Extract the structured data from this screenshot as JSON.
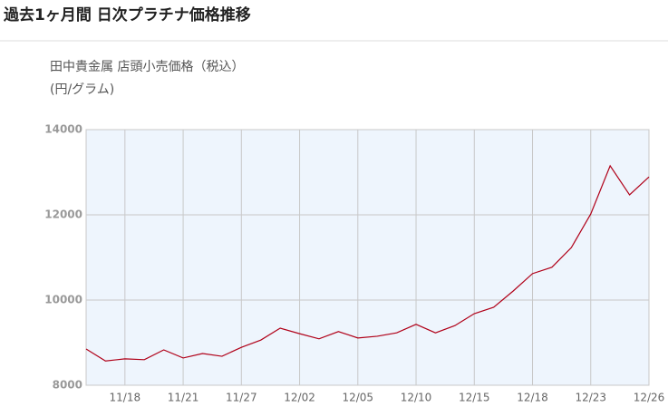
{
  "header": {
    "title": "過去1ヶ月間 日次プラチナ価格推移"
  },
  "chart_data": {
    "type": "line",
    "title": "田中貴金属 店頭小売価格（税込）",
    "subtitle": "(円/グラム)",
    "categories": [
      null,
      null,
      "11/18",
      null,
      null,
      "11/21",
      null,
      null,
      "11/27",
      null,
      null,
      "12/02",
      null,
      null,
      "12/05",
      null,
      null,
      "12/10",
      null,
      null,
      "12/15",
      null,
      null,
      "12/18",
      null,
      null,
      "12/23",
      null,
      null,
      "12/26"
    ],
    "series": [
      {
        "name": "プラチナ",
        "color": "#b00018",
        "values": [
          8850,
          8570,
          8620,
          8600,
          8830,
          8640,
          8745,
          8680,
          8890,
          9060,
          9340,
          9210,
          9090,
          9260,
          9110,
          9150,
          9230,
          9430,
          9230,
          9400,
          9680,
          9830,
          10210,
          10620,
          10770,
          11230,
          12020,
          13150,
          12470,
          12890
        ]
      }
    ],
    "ylim": [
      8000,
      14000
    ],
    "yticks": [
      8000,
      10000,
      12000,
      14000
    ],
    "grid": true
  }
}
